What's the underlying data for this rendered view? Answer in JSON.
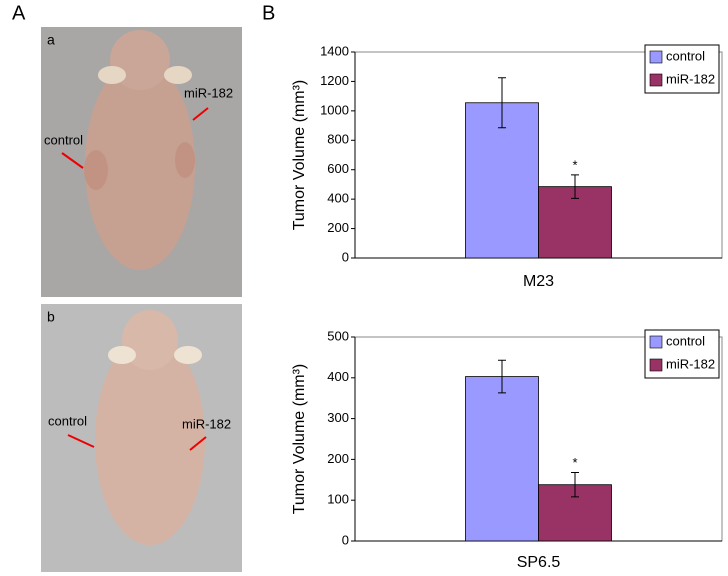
{
  "panels": [
    "A",
    "B"
  ],
  "photos": [
    {
      "label": "a",
      "annotations": [
        "control",
        "miR-182"
      ]
    },
    {
      "label": "b",
      "annotations": [
        "control",
        "miR-182"
      ]
    }
  ],
  "chart_data": [
    {
      "type": "bar",
      "ylabel": "Tumor Volume (mm³)",
      "categories": [
        "M23"
      ],
      "series": [
        {
          "name": "control",
          "color": "#9999ff",
          "values": [
            1055
          ],
          "errors": [
            170
          ]
        },
        {
          "name": "miR-182",
          "color": "#993366",
          "values": [
            485
          ],
          "errors": [
            80
          ]
        }
      ],
      "significance_mark": "*",
      "ylim": [
        0,
        1400
      ],
      "yticks": [
        0,
        200,
        400,
        600,
        800,
        1000,
        1200,
        1400
      ],
      "legend": "upper right"
    },
    {
      "type": "bar",
      "ylabel": "Tumor Volume (mm³)",
      "categories": [
        "SP6.5"
      ],
      "series": [
        {
          "name": "control",
          "color": "#9999ff",
          "values": [
            403
          ],
          "errors": [
            40
          ]
        },
        {
          "name": "miR-182",
          "color": "#993366",
          "values": [
            138
          ],
          "errors": [
            30
          ]
        }
      ],
      "significance_mark": "*",
      "ylim": [
        0,
        500
      ],
      "yticks": [
        0,
        100,
        200,
        300,
        400,
        500
      ],
      "legend": "upper right"
    }
  ]
}
